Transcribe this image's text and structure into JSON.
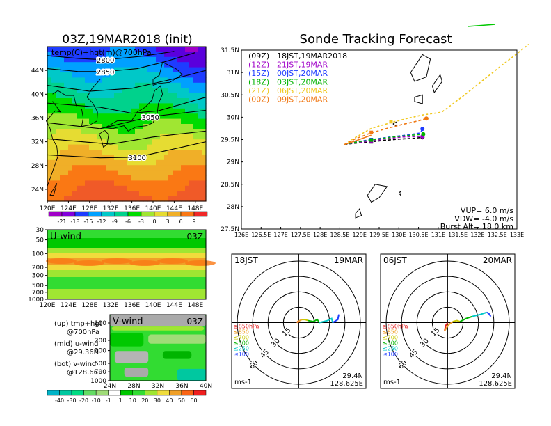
{
  "map_panel": {
    "title": "03Z,19MAR2018 (init)",
    "subtitle": "temp(C)+hgt(m)@700hPa",
    "lat_labels": [
      "44N",
      "40N",
      "36N",
      "32N",
      "28N",
      "24N"
    ],
    "lon_labels": [
      "120E",
      "124E",
      "128E",
      "132E",
      "136E",
      "140E",
      "144E",
      "148E"
    ],
    "contour_labels": [
      "2800",
      "2850",
      "3050",
      "3100"
    ],
    "colorbar_labels": [
      "-21",
      "-18",
      "-15",
      "-12",
      "-9",
      "-6",
      "-3",
      "0",
      "3",
      "6",
      "9"
    ],
    "colorbar_colors": [
      "#a000c8",
      "#8200dc",
      "#1e3cff",
      "#00a0ff",
      "#00c8c8",
      "#00d28c",
      "#00dc00",
      "#a0e632",
      "#e6dc32",
      "#f0af28",
      "#fa7814",
      "#f02828"
    ]
  },
  "uwind_panel": {
    "label": "U-wind",
    "time": "03Z",
    "y_labels": [
      "30",
      "50",
      "100",
      "200",
      "300",
      "500",
      "700",
      "1000"
    ],
    "x_labels": [
      "120E",
      "124E",
      "128E",
      "132E",
      "136E",
      "140E",
      "144E",
      "148E"
    ]
  },
  "vwind_panel": {
    "label": "V-wind",
    "time": "03Z",
    "y_labels": [
      "100",
      "200",
      "300",
      "500",
      "700",
      "1000"
    ],
    "x_labels": [
      "24N",
      "28N",
      "32N",
      "36N",
      "40N"
    ],
    "colorbar_labels": [
      "-40",
      "-30",
      "-20",
      "-10",
      "-1",
      "1",
      "10",
      "20",
      "30",
      "40",
      "50",
      "60"
    ],
    "colorbar_colors": [
      "#00b4c8",
      "#00c8a0",
      "#00dc82",
      "#64dc64",
      "#a0dc78",
      "#ffffff",
      "#00c800",
      "#32dc32",
      "#a0e632",
      "#f0dc3c",
      "#f0a028",
      "#fa6414",
      "#f01e1e"
    ]
  },
  "legend_notes": [
    {
      "line1": "(up) tmp+hgt",
      "line2": "@700hPa"
    },
    {
      "line1": "(mid) u-wind",
      "line2": "@29.36N"
    },
    {
      "line1": "(bot) v-wind",
      "line2": "@128.66E"
    }
  ],
  "tracking_panel": {
    "title": "Sonde Tracking Forecast",
    "legend": [
      {
        "code": "(09Z)",
        "label": "18JST,19MAR2018",
        "color": "#000000"
      },
      {
        "code": "(12Z)",
        "label": "21JST,19MAR",
        "color": "#a000c8"
      },
      {
        "code": "(15Z)",
        "label": "00JST,20MAR",
        "color": "#1e3cff"
      },
      {
        "code": "(18Z)",
        "label": "03JST,20MAR",
        "color": "#00b400"
      },
      {
        "code": "(21Z)",
        "label": "06JST,20MAR",
        "color": "#f0c81e"
      },
      {
        "code": "(00Z)",
        "label": "09JST,20MAR",
        "color": "#f07814"
      }
    ],
    "info": {
      "vup": "VUP= 6.0 m/s",
      "vdw": "VDW= -4.0 m/s",
      "burst": "Burst Alt= 18.0 km"
    }
  },
  "hodo_left": {
    "time": "18JST",
    "date": "19MAR",
    "lat": "29.4N",
    "lon": "128.625E",
    "unit": "ms-1"
  },
  "hodo_right": {
    "time": "06JST",
    "date": "20MAR",
    "lat": "29.4N",
    "lon": "128.625E",
    "unit": "ms-1"
  },
  "hodo_rings": [
    "15",
    "30",
    "45",
    "60"
  ],
  "hodo_levels": [
    {
      "label": "≥850hPa",
      "color": "#e61e1e"
    },
    {
      "label": "≤850",
      "color": "#f0a028"
    },
    {
      "label": "≤700",
      "color": "#c8c800"
    },
    {
      "label": "≤500",
      "color": "#00b400"
    },
    {
      "label": "≤250",
      "color": "#00c8c8"
    },
    {
      "label": "≤100",
      "color": "#1e3cff"
    }
  ],
  "chart_data": [
    {
      "type": "heatmap",
      "title": "03Z,19MAR2018 (init)",
      "subtitle": "temp(C)+hgt(m)@700hPa",
      "xlabel": "",
      "ylabel": "",
      "xlim": [
        120,
        150
      ],
      "ylim": [
        22,
        48
      ],
      "color_levels": [
        -21,
        -18,
        -15,
        -12,
        -9,
        -6,
        -3,
        0,
        3,
        6,
        9
      ],
      "height_contours": [
        {
          "label": "2800",
          "lon": 131,
          "lat": 45.8
        },
        {
          "label": "2850",
          "lon": 131,
          "lat": 43.8
        },
        {
          "label": "3050",
          "lon": 139.5,
          "lat": 36.2
        },
        {
          "label": "3100",
          "lon": 137,
          "lat": 29.4
        }
      ]
    },
    {
      "type": "line",
      "title": "Sonde Tracking Forecast",
      "xlabel": "",
      "ylabel": "",
      "xlim": [
        126,
        133
      ],
      "ylim": [
        27.5,
        31.5
      ],
      "x_ticks": [
        "126E",
        "126.5E",
        "127E",
        "127.5E",
        "128E",
        "128.5E",
        "129E",
        "129.5E",
        "130E",
        "130.5E",
        "131E",
        "131.5E",
        "132E",
        "132.5E",
        "133E"
      ],
      "y_ticks": [
        "27.5N",
        "28N",
        "28.5N",
        "29N",
        "29.5N",
        "30N",
        "30.5N",
        "31N",
        "31.5N"
      ],
      "series": [
        {
          "name": "(09Z) 18JST,19MAR2018",
          "color": "#000000",
          "dash": "4,3",
          "x": [
            128.62,
            128.9,
            129.2,
            129.6,
            130.0,
            130.4,
            130.6
          ],
          "y": [
            29.39,
            29.42,
            29.44,
            29.48,
            29.51,
            29.53,
            29.55
          ],
          "marker": {
            "x": 129.3,
            "y": 29.45
          },
          "end": {
            "x": 130.6,
            "y": 29.55
          }
        },
        {
          "name": "(12Z) 21JST,19MAR",
          "color": "#a000c8",
          "dash": "4,3",
          "x": [
            128.62,
            128.9,
            129.3,
            129.7,
            130.1,
            130.6
          ],
          "y": [
            29.39,
            29.43,
            29.47,
            29.52,
            29.56,
            29.57
          ],
          "marker": {
            "x": 129.3,
            "y": 29.47
          },
          "end": {
            "x": 130.6,
            "y": 29.57
          }
        },
        {
          "name": "(15Z) 00JST,20MAR",
          "color": "#1e3cff",
          "dash": "4,3",
          "x": [
            128.62,
            128.9,
            129.3,
            129.7,
            130.2,
            130.55,
            130.6
          ],
          "y": [
            29.39,
            29.45,
            29.5,
            29.55,
            29.6,
            29.65,
            29.74
          ],
          "marker": {
            "x": 129.3,
            "y": 29.5
          },
          "end": {
            "x": 130.6,
            "y": 29.74
          }
        },
        {
          "name": "(18Z) 03JST,20MAR",
          "color": "#00b400",
          "dash": "4,3",
          "x": [
            128.62,
            128.9,
            129.3,
            129.7,
            130.1,
            130.5,
            130.62
          ],
          "y": [
            29.39,
            29.44,
            29.49,
            29.54,
            29.58,
            29.61,
            29.62
          ],
          "marker": {
            "x": 129.3,
            "y": 29.49
          },
          "end": {
            "x": 130.62,
            "y": 29.62
          }
        },
        {
          "name": "(21Z) 06JST,20MAR",
          "color": "#f0c81e",
          "dash": "3,3",
          "x": [
            128.62,
            128.9,
            129.3,
            129.8,
            130.2,
            130.6,
            131.0,
            131.1,
            131.6,
            132.1,
            132.6,
            133.0,
            133.3
          ],
          "y": [
            29.39,
            29.55,
            29.75,
            29.88,
            29.97,
            30.05,
            30.1,
            30.12,
            30.45,
            30.8,
            31.15,
            31.42,
            31.63
          ],
          "marker": {
            "x": 129.8,
            "y": 29.9
          },
          "end": {
            "x": 133.3,
            "y": 31.63
          }
        },
        {
          "name": "(00Z) 09JST,20MAR",
          "color": "#f07814",
          "dash": "4,3",
          "x": [
            128.62,
            128.9,
            129.3,
            129.7,
            130.1,
            130.5,
            130.7
          ],
          "y": [
            29.39,
            29.52,
            29.65,
            29.75,
            29.84,
            29.92,
            29.97
          ],
          "marker": {
            "x": 129.3,
            "y": 29.66
          },
          "end": {
            "x": 130.7,
            "y": 29.97
          }
        }
      ]
    },
    {
      "type": "heatmap",
      "title": "",
      "label": "U-wind",
      "xlabel": "",
      "ylabel": "",
      "xlim": [
        120,
        150
      ],
      "ylim": [
        1000,
        30
      ],
      "y_scale": "log"
    },
    {
      "type": "heatmap",
      "title": "",
      "label": "V-wind",
      "xlabel": "",
      "ylabel": "",
      "xlim": [
        24,
        40
      ],
      "ylim": [
        1000,
        100
      ],
      "y_scale": "log",
      "color_levels": [
        -40,
        -30,
        -20,
        -10,
        -1,
        1,
        10,
        20,
        30,
        40,
        50,
        60
      ]
    },
    {
      "type": "line",
      "title": "",
      "label": "hodograph 18JST 19MAR",
      "rings_ms": [
        15,
        30,
        45,
        60
      ],
      "series": [
        {
          "name": "≥850hPa",
          "color": "#e61e1e",
          "x": [
            0,
            -1,
            -2
          ],
          "y": [
            0,
            1,
            0
          ]
        },
        {
          "name": "≤850",
          "color": "#f0a028",
          "x": [
            -2,
            1,
            3
          ],
          "y": [
            0,
            2,
            3
          ]
        },
        {
          "name": "≤700",
          "color": "#c8c800",
          "x": [
            3,
            6,
            9
          ],
          "y": [
            3,
            3,
            2
          ]
        },
        {
          "name": "≤500",
          "color": "#00b400",
          "x": [
            9,
            14,
            18,
            20
          ],
          "y": [
            2,
            1,
            3,
            0
          ]
        },
        {
          "name": "≤250",
          "color": "#00c8c8",
          "x": [
            20,
            28,
            32,
            33
          ],
          "y": [
            0,
            2,
            4,
            0
          ]
        },
        {
          "name": "≤100",
          "color": "#1e3cff",
          "x": [
            33,
            38,
            39
          ],
          "y": [
            0,
            3,
            8
          ]
        }
      ]
    },
    {
      "type": "line",
      "title": "",
      "label": "hodograph 06JST 20MAR",
      "rings_ms": [
        15,
        30,
        45,
        60
      ],
      "series": [
        {
          "name": "≥850hPa",
          "color": "#e61e1e",
          "x": [
            0,
            -2,
            -3
          ],
          "y": [
            0,
            -3,
            -8
          ]
        },
        {
          "name": "≤850",
          "color": "#f0a028",
          "x": [
            -3,
            1,
            5
          ],
          "y": [
            -8,
            -2,
            1
          ]
        },
        {
          "name": "≤700",
          "color": "#c8c800",
          "x": [
            5,
            9,
            12
          ],
          "y": [
            1,
            2,
            1
          ]
        },
        {
          "name": "≤500",
          "color": "#00b400",
          "x": [
            12,
            18,
            24
          ],
          "y": [
            1,
            4,
            6
          ]
        },
        {
          "name": "≤250",
          "color": "#00c8c8",
          "x": [
            24,
            32,
            38
          ],
          "y": [
            6,
            8,
            10
          ]
        },
        {
          "name": "≤100",
          "color": "#1e3cff",
          "x": [
            38,
            40,
            42
          ],
          "y": [
            10,
            9,
            6
          ]
        }
      ]
    }
  ]
}
